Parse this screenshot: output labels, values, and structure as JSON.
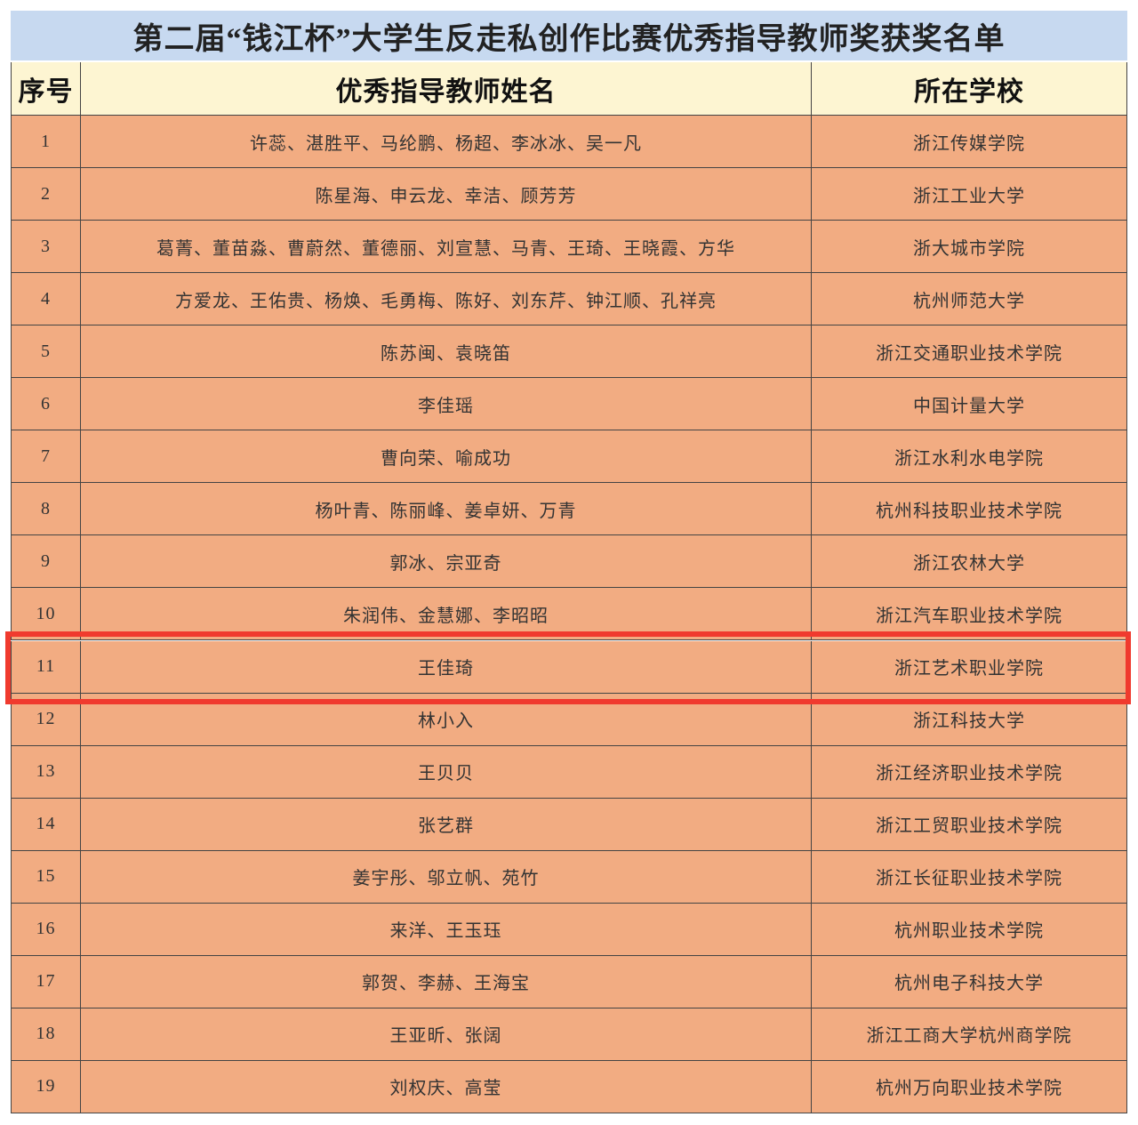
{
  "title": "第二届“钱江杯”大学生反走私创作比赛优秀指导教师奖获奖名单",
  "table": {
    "header": [
      "序号",
      "优秀指导教师姓名",
      "所在学校"
    ],
    "rows": [
      [
        "1",
        "许蕊、湛胜平、马纶鹏、杨超、李冰冰、吴一凡",
        "浙江传媒学院"
      ],
      [
        "2",
        "陈星海、申云龙、幸洁、顾芳芳",
        "浙江工业大学"
      ],
      [
        "3",
        "葛菁、董苗淼、曹蔚然、董德丽、刘宣慧、马青、王琦、王晓霞、方华",
        "浙大城市学院"
      ],
      [
        "4",
        "方爱龙、王佑贵、杨焕、毛勇梅、陈好、刘东芹、钟江顺、孔祥亮",
        "杭州师范大学"
      ],
      [
        "5",
        "陈苏闽、袁晓笛",
        "浙江交通职业技术学院"
      ],
      [
        "6",
        "李佳瑶",
        "中国计量大学"
      ],
      [
        "7",
        "曹向荣、喻成功",
        "浙江水利水电学院"
      ],
      [
        "8",
        "杨叶青、陈丽峰、姜卓妍、万青",
        "杭州科技职业技术学院"
      ],
      [
        "9",
        "郭冰、宗亚奇",
        "浙江农林大学"
      ],
      [
        "10",
        "朱润伟、金慧娜、李昭昭",
        "浙江汽车职业技术学院"
      ],
      [
        "11",
        "王佳琦",
        "浙江艺术职业学院"
      ],
      [
        "12",
        "林小入",
        "浙江科技大学"
      ],
      [
        "13",
        "王贝贝",
        "浙江经济职业技术学院"
      ],
      [
        "14",
        "张艺群",
        "浙江工贸职业技术学院"
      ],
      [
        "15",
        "姜宇彤、邬立帆、苑竹",
        "浙江长征职业技术学院"
      ],
      [
        "16",
        "来洋、王玉珏",
        "杭州职业技术学院"
      ],
      [
        "17",
        "郭贺、李赫、王海宝",
        "杭州电子科技大学"
      ],
      [
        "18",
        "王亚昕、张阔",
        "浙江工商大学杭州商学院"
      ],
      [
        "19",
        "刘权庆、高莹",
        "杭州万向职业技术学院"
      ]
    ]
  }
}
